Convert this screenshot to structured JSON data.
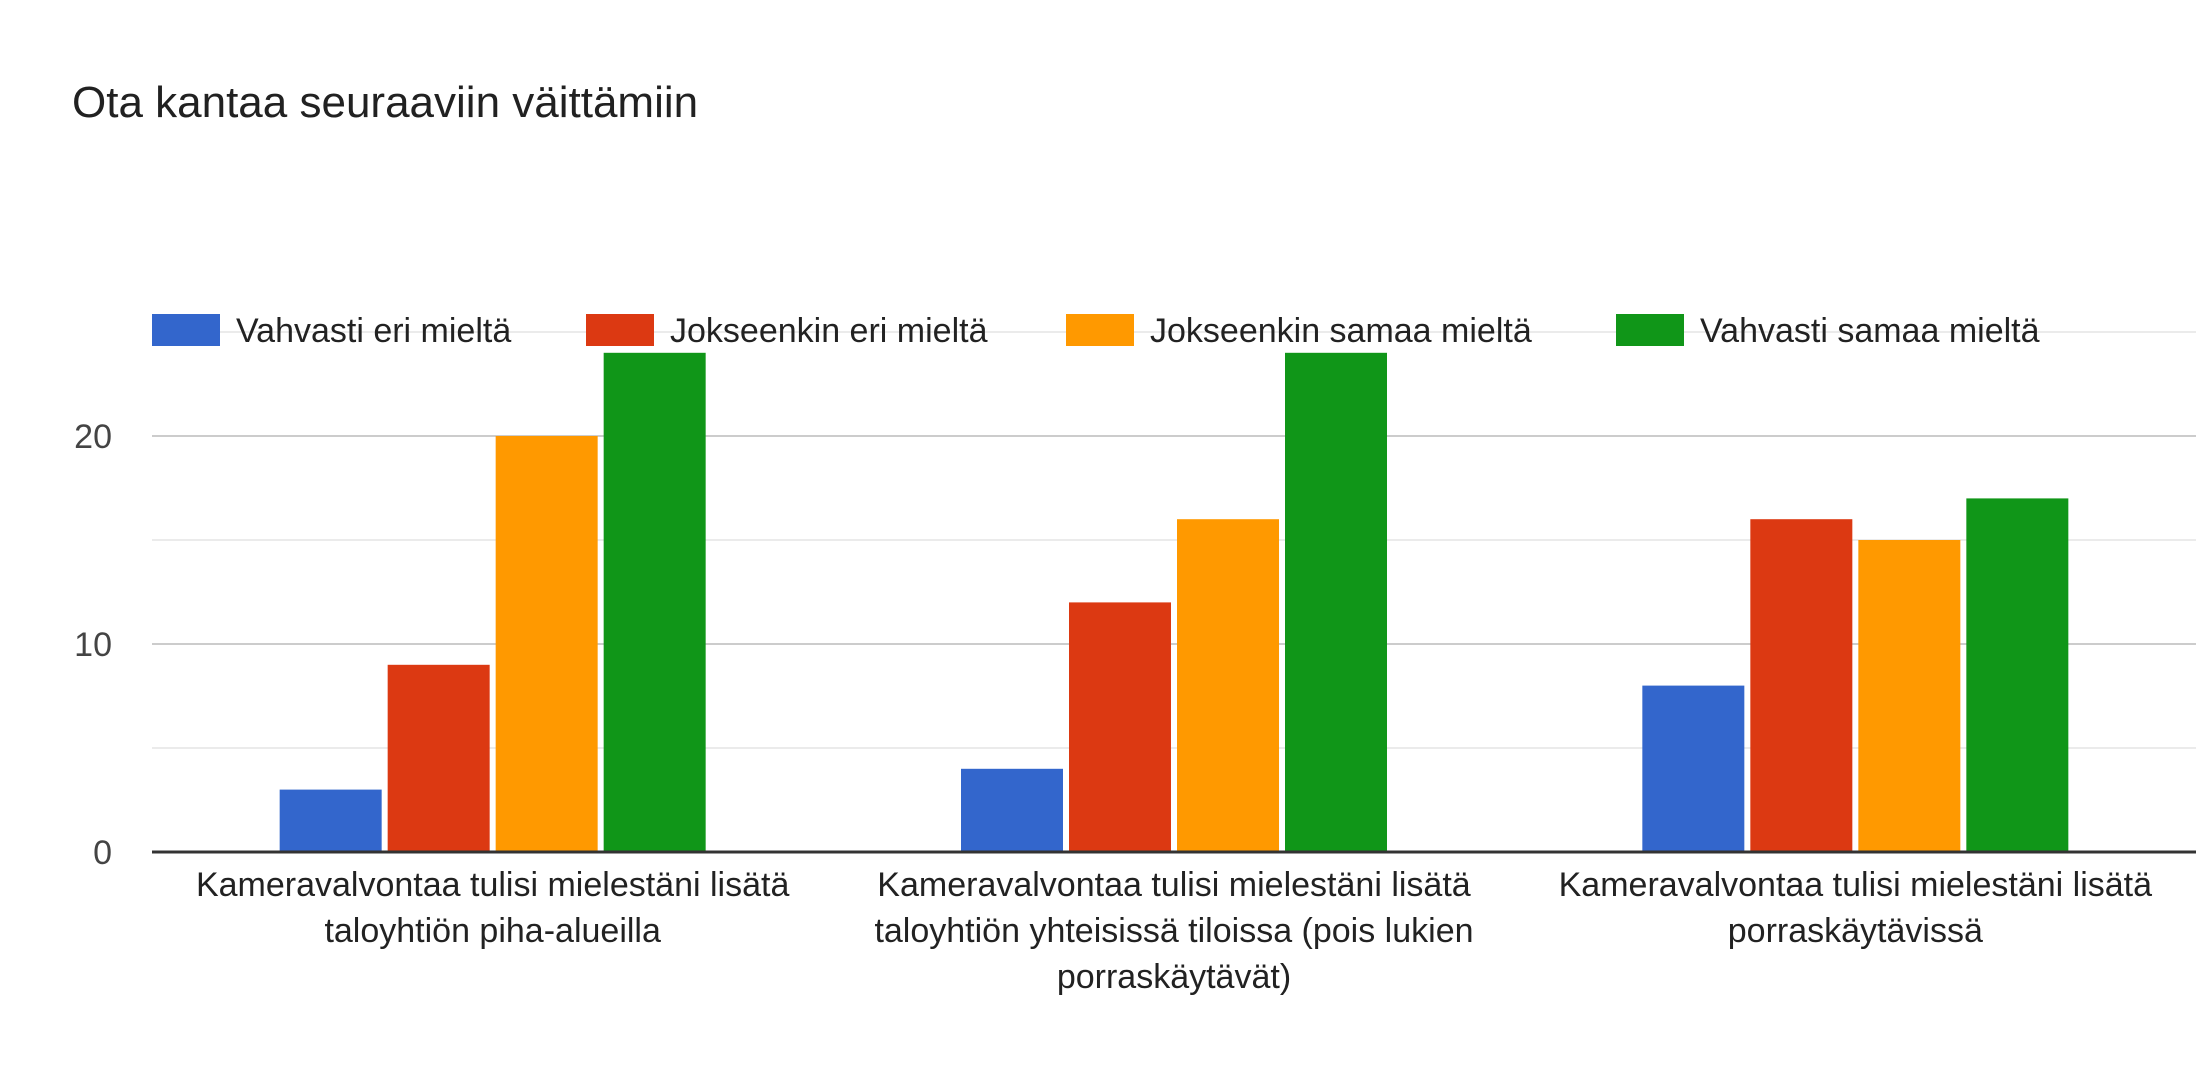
{
  "chart_data": {
    "type": "bar",
    "title": "Ota kantaa seuraaviin väittämiin",
    "categories": [
      [
        "Kameravalvontaa tulisi mielestäni lisätä",
        "taloyhtiön piha-alueilla"
      ],
      [
        "Kameravalvontaa tulisi mielestäni lisätä",
        "taloyhtiön yhteisissä tiloissa (pois lukien",
        "porraskäytävät)"
      ],
      [
        "Kameravalvontaa tulisi mielestäni lisätä",
        "porraskäytävissä"
      ]
    ],
    "series": [
      {
        "name": "Vahvasti eri mieltä",
        "color": "#3366cc",
        "values": [
          3,
          4,
          8
        ]
      },
      {
        "name": "Jokseenkin eri mieltä",
        "color": "#dc3912",
        "values": [
          9,
          12,
          16
        ]
      },
      {
        "name": "Jokseenkin samaa mieltä",
        "color": "#ff9900",
        "values": [
          20,
          16,
          15
        ]
      },
      {
        "name": "Vahvasti samaa mieltä",
        "color": "#109618",
        "values": [
          24,
          24,
          17
        ]
      }
    ],
    "ylim": [
      0,
      25
    ],
    "yticks": [
      0,
      10,
      20
    ],
    "grid": true,
    "legend": "top"
  }
}
